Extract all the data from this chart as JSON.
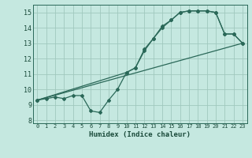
{
  "title": "",
  "xlabel": "Humidex (Indice chaleur)",
  "xlim": [
    -0.5,
    23.5
  ],
  "ylim": [
    7.8,
    15.5
  ],
  "yticks": [
    8,
    9,
    10,
    11,
    12,
    13,
    14,
    15
  ],
  "xticks": [
    0,
    1,
    2,
    3,
    4,
    5,
    6,
    7,
    8,
    9,
    10,
    11,
    12,
    13,
    14,
    15,
    16,
    17,
    18,
    19,
    20,
    21,
    22,
    23
  ],
  "bg_color": "#c5e8e0",
  "grid_color": "#a0c8be",
  "line_color": "#2a6858",
  "line1_x": [
    0,
    1,
    2,
    3,
    4,
    5,
    6,
    7,
    8,
    9,
    10,
    11,
    12,
    13,
    14,
    15,
    16,
    17,
    18,
    19,
    20,
    21,
    22,
    23
  ],
  "line1_y": [
    9.3,
    9.4,
    9.5,
    9.4,
    9.6,
    9.6,
    8.6,
    8.5,
    9.3,
    10.0,
    11.1,
    11.4,
    12.6,
    13.3,
    14.1,
    14.5,
    15.0,
    15.1,
    15.1,
    15.1,
    15.0,
    13.6,
    13.6,
    13.0
  ],
  "line2_x": [
    0,
    10,
    11,
    12,
    13,
    14,
    15,
    16,
    17,
    18,
    19,
    20,
    21,
    22,
    23
  ],
  "line2_y": [
    9.3,
    11.1,
    11.4,
    12.5,
    13.3,
    14.0,
    14.5,
    15.0,
    15.1,
    15.1,
    15.1,
    15.0,
    13.6,
    13.6,
    13.0
  ],
  "line3_x": [
    0,
    23
  ],
  "line3_y": [
    9.3,
    13.0
  ]
}
